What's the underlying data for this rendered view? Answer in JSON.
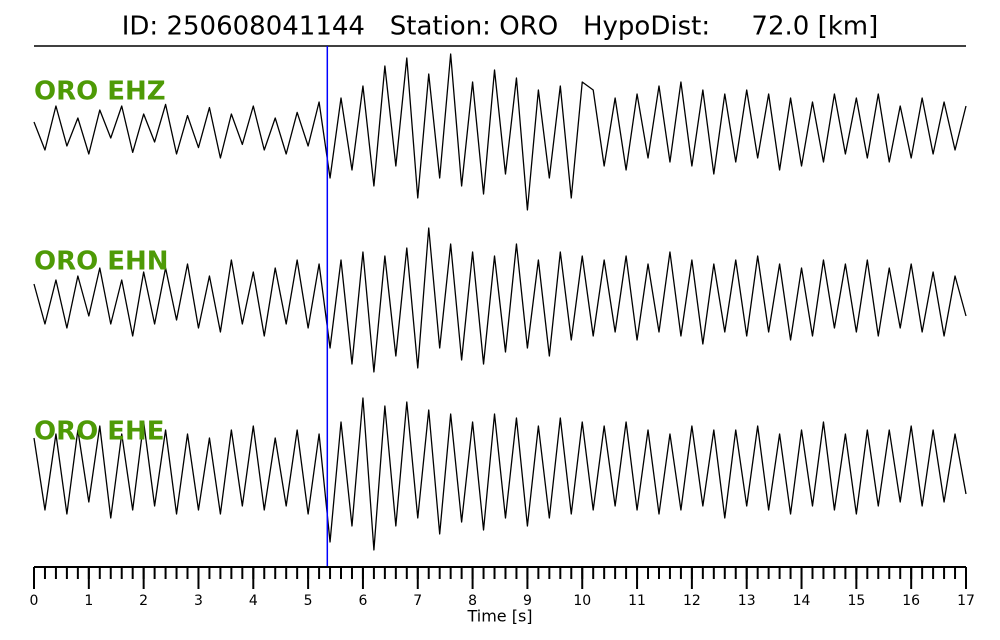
{
  "chart_data": {
    "type": "line",
    "title": "ID: 250608041144   Station: ORO   HypoDist:     72.0 [km]",
    "xlabel": "Time [s]",
    "xlim": [
      0,
      17
    ],
    "xticks": [
      0,
      1,
      2,
      3,
      4,
      5,
      6,
      7,
      8,
      9,
      10,
      11,
      12,
      13,
      14,
      15,
      16,
      17
    ],
    "xminorticks": [
      0,
      0.2,
      0.4,
      0.6,
      0.8,
      1,
      1.2,
      1.4,
      1.6,
      1.8,
      2,
      2.2,
      2.4,
      2.6,
      2.8,
      3,
      3.2,
      3.4,
      3.6,
      3.8,
      4,
      4.2,
      4.4,
      4.6,
      4.8,
      5,
      5.2,
      5.4,
      5.6,
      5.8,
      6,
      6.2,
      6.4,
      6.6,
      6.8,
      7,
      7.2,
      7.4,
      7.6,
      7.8,
      8,
      8.2,
      8.4,
      8.6,
      8.8,
      9,
      9.2,
      9.4,
      9.6,
      9.8,
      10,
      10.2,
      10.4,
      10.6,
      10.8,
      11,
      11.2,
      11.4,
      11.6,
      11.8,
      12,
      12.2,
      12.4,
      12.6,
      12.8,
      13,
      13.2,
      13.4,
      13.6,
      13.8,
      14,
      14.2,
      14.4,
      14.6,
      14.8,
      15,
      15.2,
      15.4,
      15.6,
      15.8,
      16,
      16.2,
      16.4,
      16.6,
      16.8,
      17
    ],
    "ylim": [
      -1,
      1
    ],
    "p_pick": 5.35,
    "pick_color": "#0000ff",
    "label_color": "#4e9a06",
    "x": [
      0,
      0.2,
      0.4,
      0.6,
      0.8,
      1,
      1.2,
      1.4,
      1.6,
      1.8,
      2,
      2.2,
      2.4,
      2.6,
      2.8,
      3,
      3.2,
      3.4,
      3.6,
      3.8,
      4,
      4.2,
      4.4,
      4.6,
      4.8,
      5,
      5.2,
      5.4,
      5.6,
      5.8,
      6,
      6.2,
      6.4,
      6.6,
      6.8,
      7,
      7.2,
      7.4,
      7.6,
      7.8,
      8,
      8.2,
      8.4,
      8.6,
      8.8,
      9,
      9.2,
      9.4,
      9.6,
      9.8,
      10,
      10.2,
      10.4,
      10.6,
      10.8,
      11,
      11.2,
      11.4,
      11.6,
      11.8,
      12,
      12.2,
      12.4,
      12.6,
      12.8,
      13,
      13.2,
      13.4,
      13.6,
      13.8,
      14,
      14.2,
      14.4,
      14.6,
      14.8,
      15,
      15.2,
      15.4,
      15.6,
      15.8,
      16,
      16.2,
      16.4,
      16.6,
      16.8,
      17
    ],
    "series": [
      {
        "name": "ORO EHZ",
        "color": "#000000",
        "values": [
          0.1,
          -0.25,
          0.3,
          -0.2,
          0.15,
          -0.3,
          0.25,
          -0.1,
          0.3,
          -0.28,
          0.2,
          -0.15,
          0.32,
          -0.3,
          0.18,
          -0.22,
          0.28,
          -0.35,
          0.2,
          -0.18,
          0.3,
          -0.25,
          0.15,
          -0.3,
          0.22,
          -0.2,
          0.35,
          -0.6,
          0.4,
          -0.5,
          0.55,
          -0.7,
          0.8,
          -0.45,
          0.9,
          -0.85,
          0.7,
          -0.6,
          0.95,
          -0.7,
          0.6,
          -0.8,
          0.75,
          -0.55,
          0.65,
          -1.0,
          0.5,
          -0.6,
          0.55,
          -0.85,
          0.6,
          0.5,
          -0.45,
          0.4,
          -0.5,
          0.45,
          -0.35,
          0.55,
          -0.4,
          0.6,
          -0.45,
          0.5,
          -0.55,
          0.45,
          -0.4,
          0.5,
          -0.35,
          0.45,
          -0.5,
          0.4,
          -0.45,
          0.35,
          -0.4,
          0.45,
          -0.3,
          0.4,
          -0.35,
          0.45,
          -0.4,
          0.3,
          -0.35,
          0.4,
          -0.3,
          0.35,
          -0.25,
          0.3
        ]
      },
      {
        "name": "ORO EHN",
        "color": "#000000",
        "values": [
          0.2,
          -0.3,
          0.25,
          -0.35,
          0.3,
          -0.2,
          0.4,
          -0.3,
          0.25,
          -0.45,
          0.35,
          -0.3,
          0.4,
          -0.25,
          0.45,
          -0.35,
          0.3,
          -0.4,
          0.5,
          -0.3,
          0.35,
          -0.45,
          0.4,
          -0.3,
          0.5,
          -0.35,
          0.45,
          -0.6,
          0.5,
          -0.8,
          0.6,
          -0.9,
          0.55,
          -0.7,
          0.65,
          -0.85,
          0.9,
          -0.6,
          0.7,
          -0.75,
          0.6,
          -0.8,
          0.55,
          -0.65,
          0.7,
          -0.6,
          0.5,
          -0.7,
          0.6,
          -0.5,
          0.55,
          -0.45,
          0.5,
          -0.4,
          0.55,
          -0.5,
          0.45,
          -0.4,
          0.6,
          -0.45,
          0.5,
          -0.55,
          0.45,
          -0.4,
          0.5,
          -0.45,
          0.55,
          -0.4,
          0.45,
          -0.5,
          0.4,
          -0.45,
          0.5,
          -0.35,
          0.45,
          -0.4,
          0.5,
          -0.45,
          0.4,
          -0.35,
          0.45,
          -0.4,
          0.35,
          -0.45,
          0.3,
          -0.2
        ]
      },
      {
        "name": "ORO EHE",
        "color": "#000000",
        "values": [
          0.4,
          -0.5,
          0.45,
          -0.55,
          0.5,
          -0.4,
          0.55,
          -0.6,
          0.45,
          -0.5,
          0.6,
          -0.45,
          0.5,
          -0.55,
          0.45,
          -0.5,
          0.4,
          -0.55,
          0.5,
          -0.45,
          0.55,
          -0.5,
          0.4,
          -0.45,
          0.5,
          -0.55,
          0.45,
          -0.9,
          0.6,
          -0.7,
          0.9,
          -1.0,
          0.8,
          -0.7,
          0.85,
          -0.6,
          0.75,
          -0.8,
          0.7,
          -0.65,
          0.6,
          -0.75,
          0.7,
          -0.6,
          0.65,
          -0.7,
          0.55,
          -0.6,
          0.65,
          -0.55,
          0.6,
          -0.5,
          0.55,
          -0.45,
          0.6,
          -0.5,
          0.5,
          -0.55,
          0.45,
          -0.5,
          0.55,
          -0.45,
          0.5,
          -0.6,
          0.5,
          -0.45,
          0.55,
          -0.5,
          0.45,
          -0.55,
          0.5,
          -0.45,
          0.6,
          -0.5,
          0.45,
          -0.55,
          0.5,
          -0.45,
          0.5,
          -0.4,
          0.55,
          -0.45,
          0.5,
          -0.4,
          0.45,
          -0.3
        ]
      }
    ]
  }
}
